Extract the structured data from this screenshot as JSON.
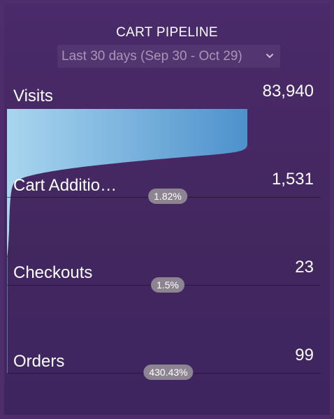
{
  "widget": {
    "title": "CART PIPELINE",
    "date_range": "Last 30 days (Sep 30 - Oct 29)",
    "chevron_icon": "chevron-down-icon"
  },
  "colors": {
    "funnel_start": "#a9d6ef",
    "funnel_end": "#4d91cc",
    "badge_bg": "#8c8591"
  },
  "stages": [
    {
      "label": "Visits",
      "value": "83,940",
      "count": 83940
    },
    {
      "label": "Cart Additio…",
      "value": "1,531",
      "count": 1531,
      "rate": "1.82%"
    },
    {
      "label": "Checkouts",
      "value": "23",
      "count": 23,
      "rate": "1.5%"
    },
    {
      "label": "Orders",
      "value": "99",
      "count": 99,
      "rate": "430.43%"
    }
  ]
}
